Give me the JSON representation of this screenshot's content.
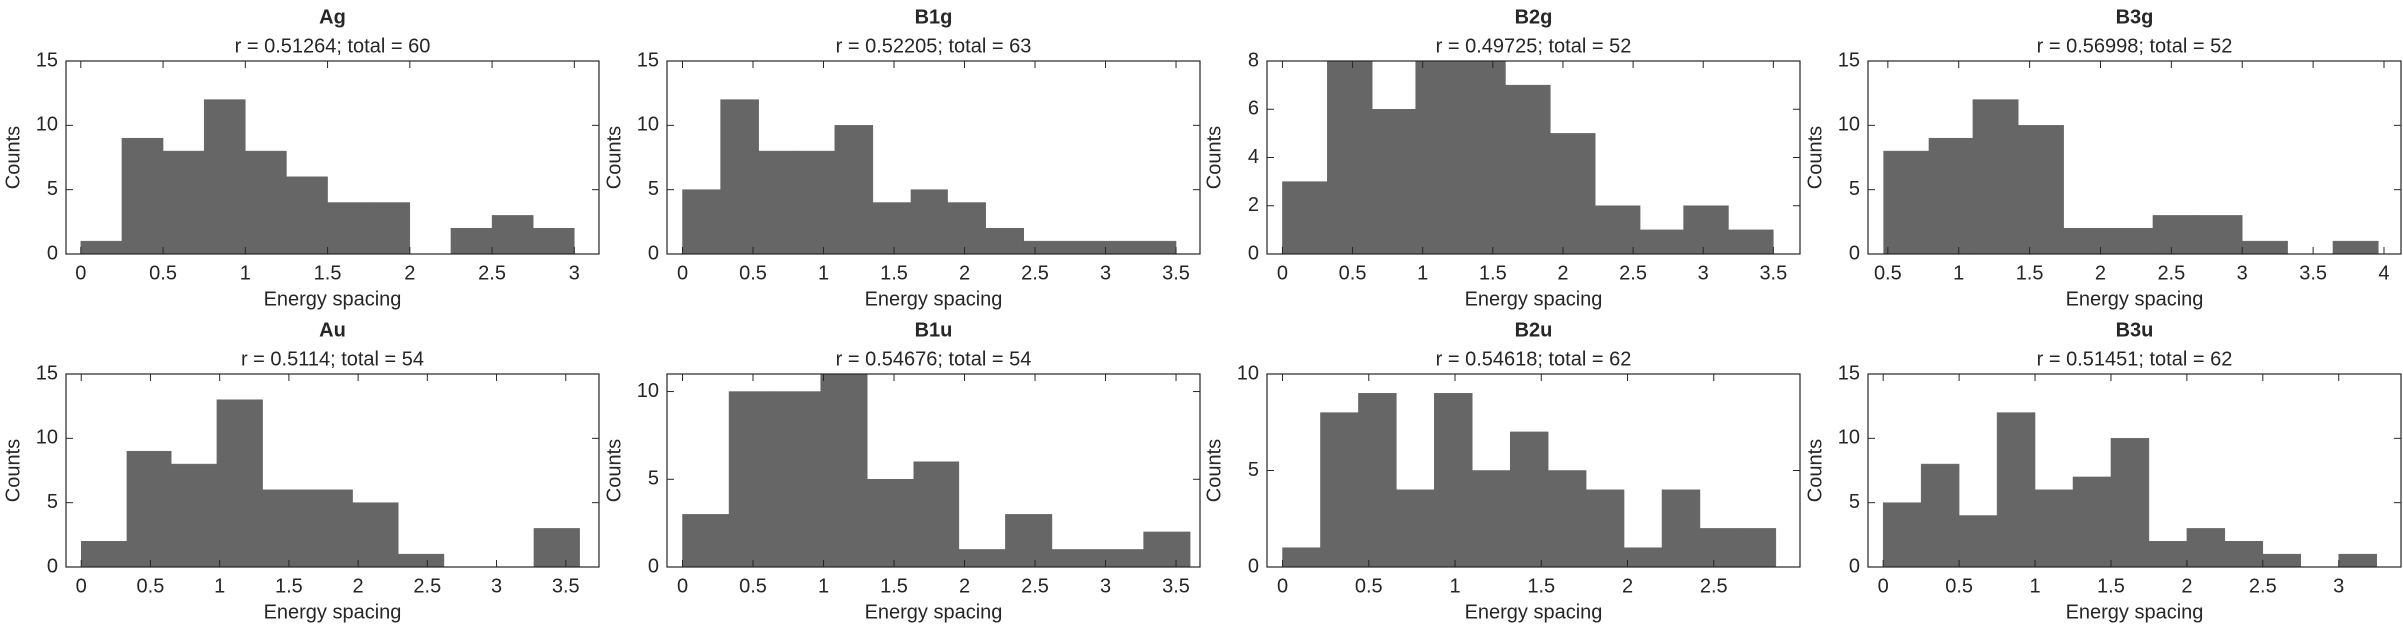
{
  "chart_data": [
    {
      "type": "histogram",
      "title": "Ag",
      "subtitle": "r = 0.51264; total = 60",
      "xlabel": "Energy spacing",
      "ylabel": "Counts",
      "color": "#666666",
      "bins": [
        0,
        0.25,
        0.5,
        0.75,
        1,
        1.25,
        1.5,
        1.75,
        2,
        2.25,
        2.5,
        2.75,
        3
      ],
      "values": [
        1,
        9,
        8,
        12,
        8,
        6,
        4,
        4,
        0,
        2,
        3,
        2
      ],
      "xlim": [
        -0.09,
        3.15
      ],
      "ylim": [
        0,
        15
      ],
      "xticks": [
        0,
        0.5,
        1,
        1.5,
        2,
        2.5,
        3
      ],
      "yticks": [
        0,
        5,
        10,
        15
      ]
    },
    {
      "type": "histogram",
      "title": "B1g",
      "subtitle": "r = 0.52205; total = 63",
      "xlabel": "Energy spacing",
      "ylabel": "Counts",
      "color": "#666666",
      "bins": [
        0,
        0.27,
        0.54,
        0.81,
        1.08,
        1.35,
        1.62,
        1.88,
        2.15,
        2.42,
        2.69,
        2.96,
        3.23,
        3.5
      ],
      "values": [
        5,
        12,
        8,
        8,
        10,
        4,
        5,
        4,
        2,
        1,
        1,
        1,
        1
      ],
      "xlim": [
        -0.11,
        3.67
      ],
      "ylim": [
        0,
        15
      ],
      "xticks": [
        0,
        0.5,
        1,
        1.5,
        2,
        2.5,
        3,
        3.5
      ],
      "yticks": [
        0,
        5,
        10,
        15
      ]
    },
    {
      "type": "histogram",
      "title": "B2g",
      "subtitle": "r = 0.49725; total = 52",
      "xlabel": "Energy spacing",
      "ylabel": "Counts",
      "color": "#666666",
      "bins": [
        0,
        0.32,
        0.64,
        0.95,
        1.27,
        1.59,
        1.91,
        2.23,
        2.55,
        2.86,
        3.18,
        3.5
      ],
      "values": [
        3,
        8,
        6,
        8,
        8,
        7,
        5,
        2,
        1,
        2,
        1
      ],
      "xlim": [
        -0.11,
        3.69
      ],
      "ylim": [
        0,
        8
      ],
      "xticks": [
        0,
        0.5,
        1,
        1.5,
        2,
        2.5,
        3,
        3.5
      ],
      "yticks": [
        0,
        2,
        4,
        6,
        8
      ]
    },
    {
      "type": "histogram",
      "title": "B3g",
      "subtitle": "r = 0.56998; total = 52",
      "xlabel": "Energy spacing",
      "ylabel": "Counts",
      "color": "#666666",
      "bins": [
        0.47,
        0.79,
        1.1,
        1.42,
        1.74,
        2.05,
        2.37,
        2.69,
        3.0,
        3.32,
        3.64,
        3.96
      ],
      "values": [
        8,
        9,
        12,
        10,
        2,
        2,
        3,
        3,
        1,
        0,
        1
      ],
      "xlim": [
        0.36,
        4.12
      ],
      "ylim": [
        0,
        15
      ],
      "xticks": [
        0.5,
        1,
        1.5,
        2,
        2.5,
        3,
        3.5,
        4
      ],
      "yticks": [
        0,
        5,
        10,
        15
      ]
    },
    {
      "type": "histogram",
      "title": "Au",
      "subtitle": "r = 0.5114; total = 54",
      "xlabel": "Energy spacing",
      "ylabel": "Counts",
      "color": "#666666",
      "bins": [
        0,
        0.33,
        0.65,
        0.98,
        1.31,
        1.64,
        1.96,
        2.29,
        2.62,
        2.95,
        3.27,
        3.6
      ],
      "values": [
        2,
        9,
        8,
        13,
        6,
        6,
        5,
        1,
        0,
        0,
        3
      ],
      "xlim": [
        -0.11,
        3.74
      ],
      "ylim": [
        0,
        15
      ],
      "xticks": [
        0,
        0.5,
        1,
        1.5,
        2,
        2.5,
        3,
        3.5
      ],
      "yticks": [
        0,
        5,
        10,
        15
      ]
    },
    {
      "type": "histogram",
      "title": "B1u",
      "subtitle": "r = 0.54676; total = 54",
      "xlabel": "Energy spacing",
      "ylabel": "Counts",
      "color": "#666666",
      "bins": [
        0,
        0.33,
        0.65,
        0.98,
        1.31,
        1.64,
        1.96,
        2.29,
        2.62,
        2.95,
        3.27,
        3.6
      ],
      "values": [
        3,
        10,
        10,
        11,
        5,
        6,
        1,
        3,
        1,
        1,
        2
      ],
      "xlim": [
        -0.11,
        3.67
      ],
      "ylim": [
        0,
        11
      ],
      "xticks": [
        0,
        0.5,
        1,
        1.5,
        2,
        2.5,
        3,
        3.5
      ],
      "yticks": [
        0,
        5,
        10
      ]
    },
    {
      "type": "histogram",
      "title": "B2u",
      "subtitle": "r = 0.54618; total = 62",
      "xlabel": "Energy spacing",
      "ylabel": "Counts",
      "color": "#666666",
      "bins": [
        0,
        0.22,
        0.44,
        0.66,
        0.88,
        1.1,
        1.32,
        1.54,
        1.76,
        1.98,
        2.2,
        2.42,
        2.64,
        2.86
      ],
      "values": [
        1,
        8,
        9,
        4,
        9,
        5,
        7,
        5,
        4,
        1,
        4,
        2,
        2
      ],
      "xlim": [
        -0.09,
        3.0
      ],
      "ylim": [
        0,
        10
      ],
      "xticks": [
        0,
        0.5,
        1,
        1.5,
        2,
        2.5
      ],
      "yticks": [
        0,
        5,
        10
      ]
    },
    {
      "type": "histogram",
      "title": "B3u",
      "subtitle": "r = 0.51451; total = 62",
      "xlabel": "Energy spacing",
      "ylabel": "Counts",
      "color": "#666666",
      "bins": [
        0,
        0.25,
        0.5,
        0.75,
        1,
        1.25,
        1.5,
        1.75,
        2,
        2.25,
        2.5,
        2.75,
        3,
        3.25
      ],
      "values": [
        5,
        8,
        4,
        12,
        6,
        7,
        10,
        2,
        3,
        2,
        1,
        0,
        1
      ],
      "xlim": [
        -0.1,
        3.41
      ],
      "ylim": [
        0,
        15
      ],
      "xticks": [
        0,
        0.5,
        1,
        1.5,
        2,
        2.5,
        3
      ],
      "yticks": [
        0,
        5,
        10,
        15
      ]
    }
  ]
}
